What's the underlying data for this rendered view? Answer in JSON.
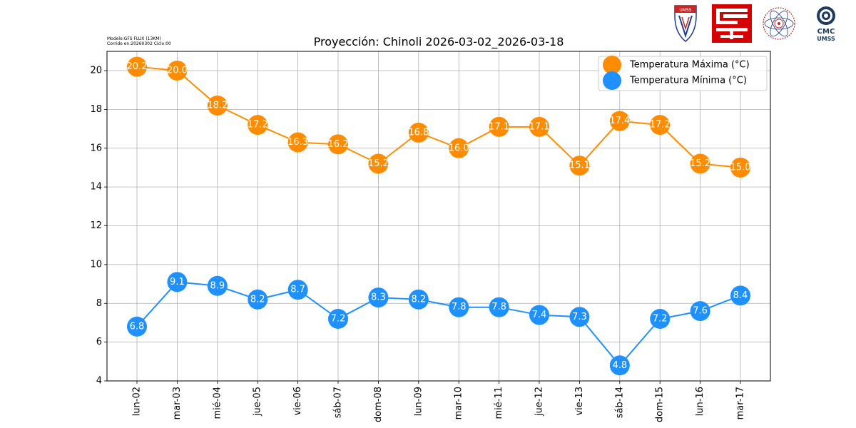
{
  "header": {
    "model_line": "Modelo:GFS FLUX (13KM)",
    "run_line": "Corrido en:20260302 Ciclo:00"
  },
  "logos": {
    "umss_shield": "UMSS",
    "cmc_name": "CMC",
    "cmc_org": "UMSS"
  },
  "chart_data": {
    "type": "line",
    "title": "Proyección: Chinoli 2026-03-02_2026-03-18",
    "xlabel": "",
    "ylabel": "",
    "categories": [
      "lun-02",
      "mar-03",
      "mié-04",
      "jue-05",
      "vie-06",
      "sáb-07",
      "dom-08",
      "lun-09",
      "mar-10",
      "mié-11",
      "jue-12",
      "vie-13",
      "sáb-14",
      "dom-15",
      "lun-16",
      "mar-17"
    ],
    "ylim": [
      4,
      21
    ],
    "yticks": [
      4,
      6,
      8,
      10,
      12,
      14,
      16,
      18,
      20
    ],
    "grid": true,
    "legend_position": "top-right",
    "series": [
      {
        "name": "Temperatura Máxima  (°C)",
        "color": "#ff8c00",
        "values": [
          20.2,
          20.0,
          18.2,
          17.2,
          16.3,
          16.2,
          15.2,
          16.8,
          16.0,
          17.1,
          17.1,
          15.1,
          17.4,
          17.2,
          15.2,
          15.0
        ],
        "labels": [
          "20.2",
          "20.0",
          "18.2",
          "17.2",
          "16.3",
          "16.2",
          "15.2",
          "16.8",
          "16.0",
          "17.1",
          "17.1",
          "15.1",
          "17.4",
          "17.2",
          "15.2",
          "15.0"
        ]
      },
      {
        "name": "Temperatura Mínima  (°C)",
        "color": "#1e90ff",
        "values": [
          6.8,
          9.1,
          8.9,
          8.2,
          8.7,
          7.2,
          8.3,
          8.2,
          7.8,
          7.8,
          7.4,
          7.3,
          4.8,
          7.2,
          7.6,
          8.4
        ],
        "labels": [
          "6.8",
          "9.1",
          "8.9",
          "8.2",
          "8.7",
          "7.2",
          "8.3",
          "8.2",
          "7.8",
          "7.8",
          "7.4",
          "7.3",
          "4.8",
          "7.2",
          "7.6",
          "8.4"
        ]
      }
    ]
  }
}
